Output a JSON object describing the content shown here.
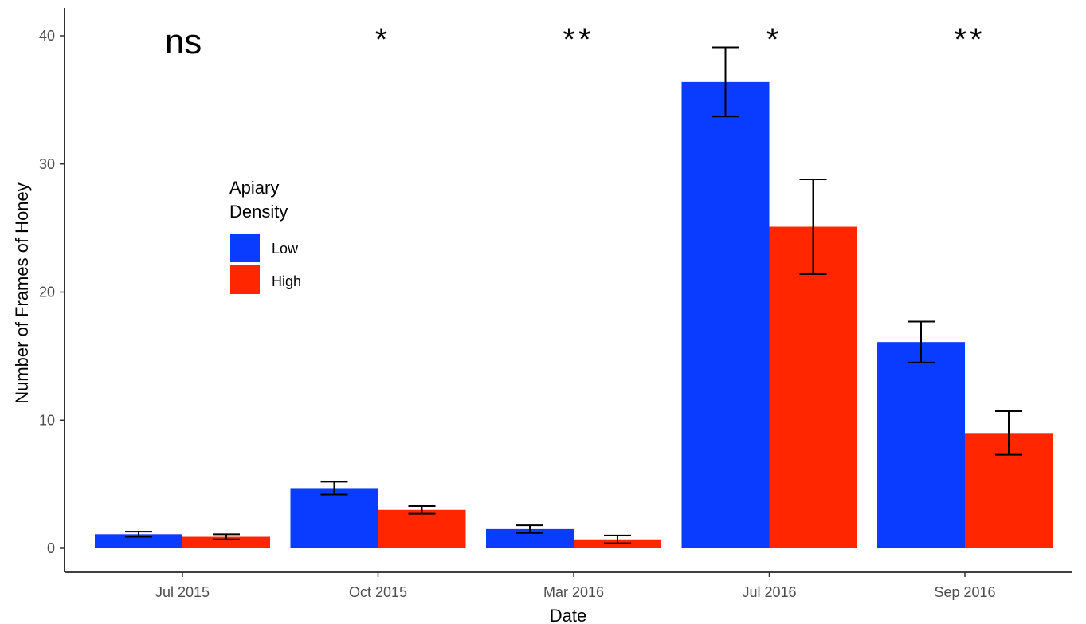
{
  "chart_data": {
    "type": "bar",
    "title": "",
    "xlabel": "Date",
    "ylabel": "Number of Frames of Honey",
    "categories": [
      "Jul 2015",
      "Oct 2015",
      "Mar 2016",
      "Jul 2016",
      "Sep 2016"
    ],
    "ylim": [
      0,
      40
    ],
    "yticks": [
      0,
      10,
      20,
      30,
      40
    ],
    "grid": false,
    "legend": {
      "title_lines": [
        "Apiary",
        "Density"
      ],
      "placement": "left"
    },
    "series": [
      {
        "name": "Low",
        "color": "#0a3cff",
        "values": [
          1.1,
          4.7,
          1.5,
          36.4,
          16.1
        ],
        "error": [
          0.2,
          0.5,
          0.3,
          2.7,
          1.6
        ]
      },
      {
        "name": "High",
        "color": "#ff2600",
        "values": [
          0.9,
          3.0,
          0.7,
          25.1,
          9.0
        ],
        "error": [
          0.2,
          0.3,
          0.3,
          3.7,
          1.7
        ]
      }
    ],
    "annotations": [
      {
        "category": "Jul 2015",
        "text": "ns",
        "style": "large"
      },
      {
        "category": "Oct 2015",
        "text": "*",
        "style": "star"
      },
      {
        "category": "Mar 2016",
        "text": "**",
        "style": "star"
      },
      {
        "category": "Jul 2016",
        "text": "*",
        "style": "star"
      },
      {
        "category": "Sep 2016",
        "text": "**",
        "style": "star"
      }
    ]
  }
}
